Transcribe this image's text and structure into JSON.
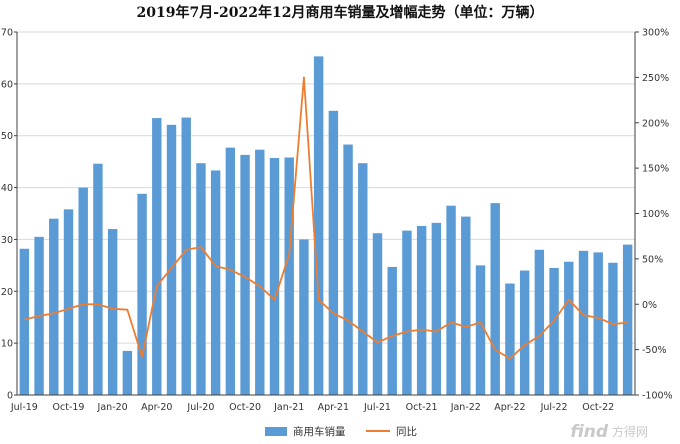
{
  "chart_data": {
    "type": "bar",
    "title": "2019年7月-2022年12月商用车销量及增幅走势（单位：万辆）",
    "xlabel": "",
    "ylabel": "",
    "ylim": [
      0,
      70
    ],
    "y2lim": [
      -100,
      300
    ],
    "y_ticks": [
      "0",
      "10",
      "20",
      "30",
      "40",
      "50",
      "60",
      "70"
    ],
    "y2_ticks": [
      "-100%",
      "-50%",
      "0%",
      "50%",
      "100%",
      "150%",
      "200%",
      "250%",
      "300%"
    ],
    "grid": "horizontal",
    "legend_position": "bottom",
    "x_tick_labels": [
      "Jul-19",
      "Oct-19",
      "Jan-20",
      "Apr-20",
      "Jul-20",
      "Oct-20",
      "Jan-21",
      "Apr-21",
      "Jul-21",
      "Oct-21",
      "Jan-22",
      "Apr-22",
      "Jul-22",
      "Oct-22"
    ],
    "categories": [
      "Jul-19",
      "Aug-19",
      "Sep-19",
      "Oct-19",
      "Nov-19",
      "Dec-19",
      "Jan-20",
      "Feb-20",
      "Mar-20",
      "Apr-20",
      "May-20",
      "Jun-20",
      "Jul-20",
      "Aug-20",
      "Sep-20",
      "Oct-20",
      "Nov-20",
      "Dec-20",
      "Jan-21",
      "Feb-21",
      "Mar-21",
      "Apr-21",
      "May-21",
      "Jun-21",
      "Jul-21",
      "Aug-21",
      "Sep-21",
      "Oct-21",
      "Nov-21",
      "Dec-21",
      "Jan-22",
      "Feb-22",
      "Mar-22",
      "Apr-22",
      "May-22",
      "Jun-22",
      "Jul-22",
      "Aug-22",
      "Sep-22",
      "Oct-22",
      "Nov-22",
      "Dec-22"
    ],
    "series": [
      {
        "name": "商用车销量",
        "axis": "left",
        "kind": "bar",
        "color": "#5b9bd5",
        "values": [
          28.2,
          30.5,
          34.0,
          35.8,
          40.0,
          44.6,
          32.0,
          8.5,
          38.8,
          53.4,
          52.1,
          53.5,
          44.7,
          43.3,
          47.7,
          46.3,
          47.3,
          45.7,
          45.8,
          30.0,
          65.3,
          54.8,
          48.3,
          44.7,
          31.2,
          24.7,
          31.7,
          32.6,
          33.2,
          36.5,
          34.4,
          25.0,
          37.0,
          21.5,
          24.0,
          28.0,
          24.5,
          25.7,
          27.8,
          27.5,
          25.5,
          29.0
        ]
      },
      {
        "name": "同比",
        "axis": "right",
        "kind": "line",
        "color": "#ed7d31",
        "values": [
          -17,
          -13,
          -10,
          -5,
          0,
          0,
          -5,
          -6,
          -58,
          20,
          40,
          60,
          63,
          42,
          38,
          30,
          20,
          5,
          55,
          250,
          5,
          -10,
          -18,
          -30,
          -42,
          -35,
          -30,
          -28,
          -30,
          -20,
          -25,
          -20,
          -50,
          -60,
          -45,
          -35,
          -18,
          5,
          -12,
          -15,
          -22,
          -20
        ]
      }
    ]
  },
  "watermark": {
    "brand": "find",
    "brand_cn": "方得网"
  }
}
